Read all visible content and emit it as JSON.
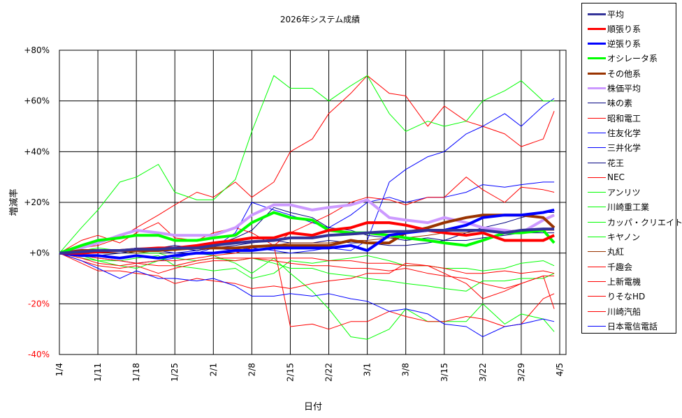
{
  "chart_data": {
    "type": "line",
    "title": "2026年システム成績",
    "xlabel": "日付",
    "ylabel": "増減率",
    "ylim": [
      -40,
      80
    ],
    "yticks": [
      "+80%",
      "+60%",
      "+40%",
      "+20%",
      "+0%",
      "-20%",
      "-40%"
    ],
    "ytick_values": [
      80,
      60,
      40,
      20,
      0,
      -20,
      -40
    ],
    "negative_tick_color": "#ff0000",
    "xlim": [
      "1/4",
      "4/6"
    ],
    "xticks": [
      "1/4",
      "1/11",
      "1/18",
      "1/25",
      "2/1",
      "2/8",
      "2/15",
      "2/22",
      "3/1",
      "3/8",
      "3/15",
      "3/22",
      "3/29",
      "4/5"
    ],
    "grid": true,
    "legend_position": "right",
    "x": [
      "1/4",
      "1/8",
      "1/11",
      "1/15",
      "1/18",
      "1/22",
      "1/25",
      "1/29",
      "2/1",
      "2/5",
      "2/8",
      "2/12",
      "2/15",
      "2/19",
      "2/22",
      "2/26",
      "3/1",
      "3/5",
      "3/8",
      "3/12",
      "3/15",
      "3/19",
      "3/22",
      "3/26",
      "3/29",
      "4/2",
      "4/4"
    ],
    "series": [
      {
        "name": "平均",
        "color": "#333399",
        "width": 4,
        "values": [
          0,
          0.5,
          1,
          1,
          1.5,
          1.5,
          2,
          2,
          3,
          4,
          4.5,
          5,
          6,
          6,
          7,
          7.5,
          8,
          8.5,
          8.5,
          9,
          9,
          9,
          9,
          8,
          9,
          9.5,
          9.5
        ]
      },
      {
        "name": "順張り系",
        "color": "#ff0000",
        "width": 4,
        "values": [
          0,
          0,
          0.5,
          1,
          1.5,
          2,
          2,
          3,
          4,
          5,
          6,
          6,
          8,
          7,
          9,
          10,
          12,
          12,
          11,
          9,
          8,
          7,
          8,
          5,
          5,
          5,
          7
        ]
      },
      {
        "name": "逆張り系",
        "color": "#0000ff",
        "width": 4,
        "values": [
          0,
          -1,
          -1,
          -2,
          -1,
          -2,
          -1,
          0,
          0,
          1,
          1,
          2,
          2,
          2,
          2,
          3,
          1,
          7,
          8,
          9,
          9,
          11,
          14,
          15,
          15,
          16,
          17
        ]
      },
      {
        "name": "オシレータ系",
        "color": "#00ff00",
        "width": 4,
        "values": [
          0,
          3,
          5,
          6,
          7,
          7,
          5,
          5,
          6,
          7,
          12,
          16,
          14,
          13,
          9,
          8,
          8,
          7,
          6,
          5,
          4,
          3,
          5,
          8,
          8,
          9,
          4
        ]
      },
      {
        "name": "その他系",
        "color": "#993300",
        "width": 4,
        "values": [
          0,
          1,
          1,
          1,
          1,
          1,
          1.5,
          2,
          2,
          2,
          2.5,
          3,
          3,
          3,
          3,
          5,
          4,
          4,
          8,
          10,
          12,
          14,
          15,
          15,
          15,
          14,
          10
        ]
      },
      {
        "name": "株価平均",
        "color": "#cc99ff",
        "width": 4,
        "values": [
          0,
          2,
          4,
          7,
          9,
          8,
          7,
          7,
          7,
          10,
          15,
          19,
          19,
          17,
          18,
          19,
          21,
          14,
          13,
          12,
          14,
          12,
          10,
          9,
          8,
          13,
          15
        ]
      },
      {
        "name": "味の素",
        "color": "#000080",
        "width": 1,
        "values": [
          0,
          1,
          0,
          1,
          2,
          2,
          3,
          2,
          3,
          6,
          9,
          18,
          16,
          14,
          10,
          9,
          7,
          6,
          5,
          6,
          5,
          8,
          10,
          12,
          14,
          16,
          16
        ]
      },
      {
        "name": "昭和電工",
        "color": "#ff0000",
        "width": 1,
        "values": [
          0,
          2,
          3,
          6,
          10,
          15,
          19,
          24,
          22,
          28,
          22,
          28,
          40,
          45,
          55,
          63,
          70,
          63,
          62,
          50,
          58,
          52,
          50,
          47,
          42,
          45,
          56
        ]
      },
      {
        "name": "住友化学",
        "color": "#0000ff",
        "width": 1,
        "values": [
          0,
          1,
          0,
          1,
          2,
          1,
          0,
          1,
          2,
          1,
          2,
          1,
          0,
          1,
          2,
          1,
          5,
          28,
          33,
          38,
          40,
          47,
          50,
          55,
          50,
          58,
          61
        ]
      },
      {
        "name": "三井化学",
        "color": "#0000ff",
        "width": 1,
        "values": [
          0,
          -1,
          -2,
          -3,
          -4,
          -3,
          -2,
          0,
          2,
          8,
          20,
          17,
          15,
          12,
          10,
          15,
          20,
          22,
          20,
          22,
          22,
          24,
          27,
          26,
          27,
          28,
          28
        ]
      },
      {
        "name": "花王",
        "color": "#000080",
        "width": 1,
        "values": [
          0,
          -1,
          -1,
          0,
          1,
          2,
          2,
          1,
          2,
          3,
          4,
          5,
          4,
          4,
          5,
          4,
          4,
          3,
          3,
          4,
          5,
          5,
          6,
          7,
          8,
          8,
          8
        ]
      },
      {
        "name": "NEC",
        "color": "#ff0000",
        "width": 1,
        "values": [
          0,
          5,
          7,
          4,
          8,
          12,
          6,
          5,
          8,
          10,
          8,
          3,
          8,
          12,
          15,
          20,
          22,
          21,
          19,
          22,
          22,
          30,
          25,
          20,
          26,
          25,
          24
        ]
      },
      {
        "name": "アンリツ",
        "color": "#00ff00",
        "width": 1,
        "values": [
          0,
          -2,
          -3,
          -3,
          -2,
          -1,
          -5,
          -6,
          -7,
          -6,
          -10,
          -8,
          -3,
          -4,
          -3,
          -2,
          -1,
          -3,
          -5,
          -5,
          -6,
          -6,
          -7,
          -6,
          -4,
          -3,
          -5
        ]
      },
      {
        "name": "川崎重工業",
        "color": "#00ff00",
        "width": 1,
        "values": [
          0,
          1,
          2,
          1,
          0,
          0,
          -2,
          -3,
          -2,
          -3,
          -2,
          -4,
          -6,
          -6,
          -8,
          -9,
          -10,
          -11,
          -12,
          -13,
          -14,
          -15,
          -11,
          -11,
          -10,
          -10,
          -8
        ]
      },
      {
        "name": "カッパ・クリエイト",
        "color": "#00ff00",
        "width": 1,
        "values": [
          0,
          10,
          17,
          28,
          30,
          35,
          24,
          21,
          21,
          29,
          48,
          70,
          65,
          65,
          60,
          66,
          70,
          55,
          48,
          52,
          50,
          52,
          60,
          64,
          68,
          60,
          60
        ]
      },
      {
        "name": "キヤノン",
        "color": "#00ff00",
        "width": 1,
        "values": [
          0,
          -1,
          -3,
          -5,
          -6,
          -3,
          -1,
          0,
          -1,
          -4,
          -8,
          -2,
          -8,
          -15,
          -22,
          -33,
          -34,
          -30,
          -22,
          -27,
          -27,
          -27,
          -20,
          -28,
          -24,
          -26,
          -31
        ]
      },
      {
        "name": "丸紅",
        "color": "#993300",
        "width": 1,
        "values": [
          0,
          1,
          1,
          1,
          0,
          1,
          1,
          2,
          2,
          2,
          3,
          3,
          4,
          4,
          4,
          5,
          5,
          6,
          6,
          7,
          8,
          8,
          9,
          9,
          9,
          9,
          9
        ]
      },
      {
        "name": "千趣会",
        "color": "#ff0000",
        "width": 1,
        "values": [
          0,
          -4,
          -7,
          -7,
          -8,
          -9,
          -12,
          -10,
          -11,
          -12,
          -14,
          -13,
          -14,
          -12,
          -11,
          -10,
          -8,
          -8,
          -4,
          -5,
          -8,
          -12,
          -18,
          -15,
          -12,
          -9,
          -9
        ]
      },
      {
        "name": "上新電機",
        "color": "#ff0000",
        "width": 1,
        "values": [
          0,
          -3,
          -5,
          -6,
          -5,
          -8,
          -6,
          -4,
          -3,
          -3,
          -2,
          -3,
          -4,
          -5,
          -5,
          -6,
          -6,
          -7,
          -6,
          -8,
          -9,
          -10,
          -12,
          -14,
          -12,
          -9,
          -22
        ]
      },
      {
        "name": "りそなHD",
        "color": "#ff0000",
        "width": 1,
        "values": [
          0,
          -1,
          -2,
          -3,
          -4,
          -5,
          -5,
          -3,
          -2,
          -2,
          -2,
          -2,
          -2,
          -2,
          -3,
          -3,
          -4,
          -4,
          -5,
          -5,
          -6,
          -8,
          -8,
          -7,
          -8,
          -7,
          -8
        ]
      },
      {
        "name": "川崎汽船",
        "color": "#ff0000",
        "width": 1,
        "values": [
          0,
          -2,
          -4,
          -5,
          -4,
          -3,
          -3,
          -2,
          -1,
          0,
          2,
          3,
          -29,
          -28,
          -30,
          -27,
          -27,
          -23,
          -25,
          -27,
          -27,
          -25,
          -26,
          -29,
          -28,
          -18,
          -16
        ]
      },
      {
        "name": "日本電信電話",
        "color": "#0000ff",
        "width": 1,
        "values": [
          0,
          -3,
          -6,
          -10,
          -7,
          -10,
          -10,
          -11,
          -10,
          -13,
          -17,
          -17,
          -16,
          -17,
          -16,
          -18,
          -19,
          -23,
          -22,
          -24,
          -28,
          -29,
          -33,
          -29,
          -28,
          -26,
          -27
        ]
      }
    ]
  }
}
